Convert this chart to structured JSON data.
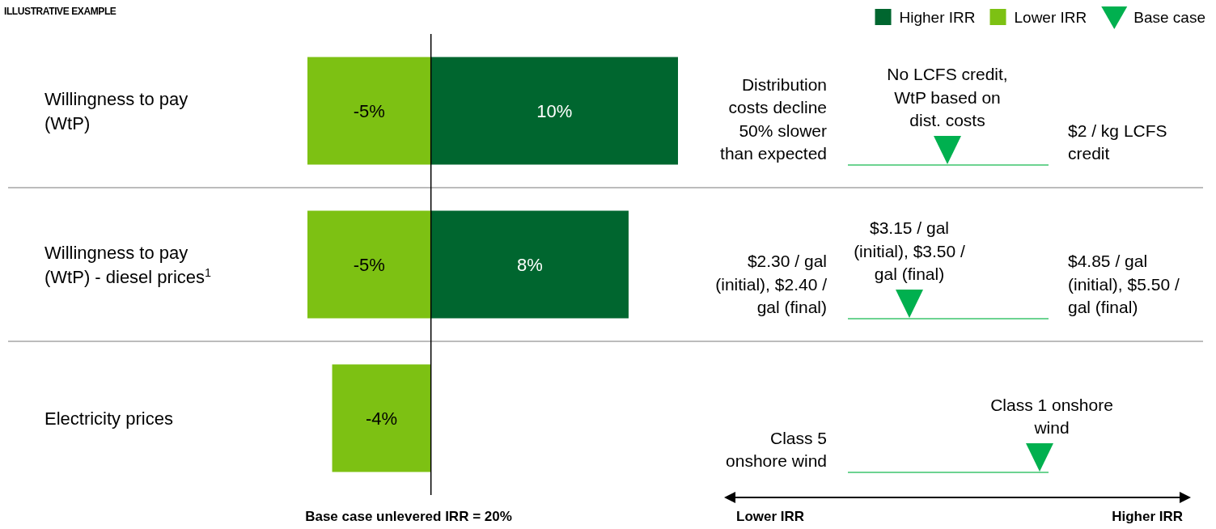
{
  "chart_data": [
    {
      "type": "bar",
      "title": "ILLUSTRATIVE EXAMPLE",
      "orientation": "horizontal",
      "stacked": true,
      "categories": [
        "Willingness to pay (WtP)",
        "Willingness to pay (WtP) - diesel prices$^{1}$",
        "Electricity prices"
      ],
      "series": [
        {
          "name": "Higher IRR",
          "color": "#00662f",
          "values": [
            10,
            8,
            null
          ],
          "value_labels": [
            "10%",
            "8%",
            null
          ]
        },
        {
          "name": "Lower IRR",
          "color": "#7dc113",
          "values": [
            -5,
            -5,
            -4
          ],
          "value_labels": [
            "-5%",
            "-5%",
            "-4%"
          ]
        }
      ],
      "tick_labels": "y",
      "xlabel": "Base case unlevered IRR = 20%",
      "ref_lines": [
        {
          "axis": "x",
          "value": 0,
          "color": "#000000"
        }
      ],
      "legend": "top right"
    },
    {
      "type": "other",
      "annotations": [
        "Base case",
        "Distribution costs decline 50% slower than expected",
        "No LCFS credit, WtP based on dist. costs",
        "$2 / kg LCFS credit",
        "$2.30 / gal (initial), $2.40 / gal (final)",
        "$3.15 / gal (initial), $3.50 / gal (final)",
        "$4.85 / gal (initial), $5.50 / gal (final)",
        "Class 5 onshore wind",
        "Class 1 onshore wind",
        "Lower IRR",
        "Higher IRR"
      ]
    }
  ]
}
